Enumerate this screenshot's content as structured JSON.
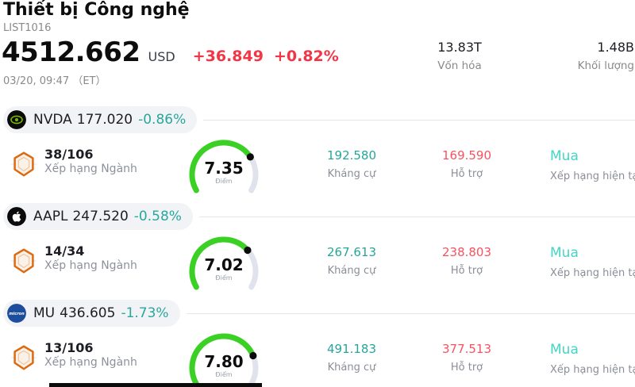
{
  "header": {
    "title": "Thiết bị Công nghệ",
    "list_id": "LIST1016",
    "price": "4512.662",
    "currency": "USD",
    "change_abs": "+36.849",
    "change_pct": "+0.82%",
    "datetime": "03/20, 09:47 （ET）",
    "stats": [
      {
        "value": "13.83T",
        "label": "Vốn hóa"
      },
      {
        "value": "1.48B",
        "label": "Khối lượng"
      }
    ]
  },
  "colors": {
    "positive_teal": "#26a69a",
    "rating_teal": "#42d5c4",
    "change_red": "#f23645",
    "support_red": "#f7525f",
    "gauge_green": "#3bd124",
    "gauge_track": "#e0e3eb",
    "chip_bg": "#f1f3f6",
    "muted_text": "#8a8e98"
  },
  "rows": [
    {
      "logo_icon": "nvidia-logo",
      "ticker": "NVDA",
      "price": "177.020",
      "change": "-0.86%",
      "rank": "38/106",
      "rank_label": "Xếp hạng Ngành",
      "gauge_value": "7.35",
      "gauge_label": "Điểm",
      "resistance": "192.580",
      "resistance_label": "Kháng cự",
      "support": "169.590",
      "support_label": "Hỗ trợ",
      "rating": "Mua",
      "rating_label": "Xếp hạng hiện tại"
    },
    {
      "logo_icon": "apple-logo",
      "ticker": "AAPL",
      "price": "247.520",
      "change": "-0.58%",
      "rank": "14/34",
      "rank_label": "Xếp hạng Ngành",
      "gauge_value": "7.02",
      "gauge_label": "Điểm",
      "resistance": "267.613",
      "resistance_label": "Kháng cự",
      "support": "238.803",
      "support_label": "Hỗ trợ",
      "rating": "Mua",
      "rating_label": "Xếp hạng hiện tại"
    },
    {
      "logo_icon": "micron-logo",
      "ticker": "MU",
      "price": "436.605",
      "change": "-1.73%",
      "rank": "13/106",
      "rank_label": "Xếp hạng Ngành",
      "gauge_value": "7.80",
      "gauge_label": "Điểm",
      "resistance": "491.183",
      "resistance_label": "Kháng cự",
      "support": "377.513",
      "support_label": "Hỗ trợ",
      "rating": "Mua",
      "rating_label": "Xếp hạng hiện tại"
    }
  ]
}
